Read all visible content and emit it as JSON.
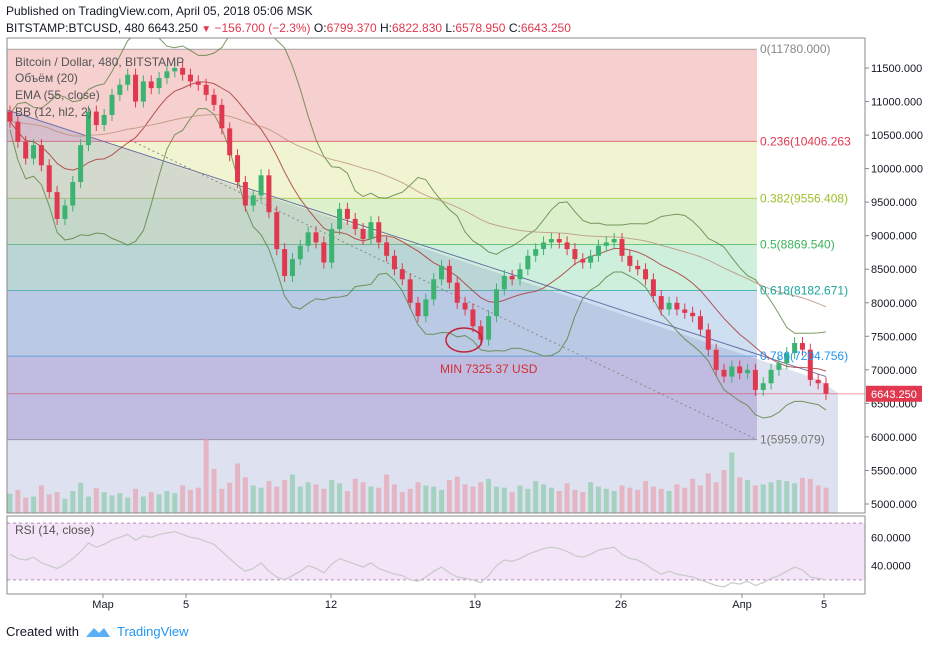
{
  "header": {
    "published": "Published on TradingView.com, April 05, 2018 05:06 MSK",
    "symbol": "BITSTAMP:BTCUSD, 480",
    "last": "6643.250",
    "change": "−156.700 (−2.3%)",
    "o_label": "O:",
    "o_value": "6799.370",
    "h_label": "H:",
    "h_value": "6822.830",
    "l_label": "L:",
    "l_value": "6578.950",
    "c_label": "C:",
    "c_value": "6643.250"
  },
  "legend": {
    "title": "Bitcoin / Dollar, 480, BITSTAMP",
    "volume": "Объём (20)",
    "ema": "EMA (55, close)",
    "bb": "BB (12, hl2, 2)"
  },
  "annotation": "MIN 7325.37 USD",
  "rsi_label": "RSI (14, close)",
  "footer": {
    "created": "Created with",
    "brand": "TradingView"
  },
  "colors": {
    "up": "#3cb371",
    "down": "#e0394f",
    "accent": "#2196f3",
    "fib_line": "#e0394f"
  },
  "chart_data": [
    {
      "type": "candlestick",
      "title": "Bitcoin / Dollar, 480, BITSTAMP",
      "x_ticks": [
        "Мар",
        "5",
        "12",
        "19",
        "26",
        "Апр",
        "5"
      ],
      "y_ticks": [
        "11500.000",
        "11000.000",
        "10500.000",
        "10000.000",
        "9500.000",
        "9000.000",
        "8500.000",
        "8000.000",
        "7500.000",
        "7000.000",
        "6500.000",
        "6000.000",
        "5500.000",
        "5000.000"
      ],
      "ylim": [
        4900,
        11900
      ],
      "last_price_label": "6643.250",
      "fibonacci": [
        {
          "level": "0",
          "price": 11780.0,
          "label": "0(11780.000)"
        },
        {
          "level": "0.236",
          "price": 10406.263,
          "label": "0.236(10406.263"
        },
        {
          "level": "0.382",
          "price": 9556.408,
          "label": "0.382(9556.408)"
        },
        {
          "level": "0.5",
          "price": 8869.54,
          "label": "0.5(8869.540)"
        },
        {
          "level": "0.618",
          "price": 8182.671,
          "label": "0.618(8182.671)"
        },
        {
          "level": "0.786",
          "price": 7204.756,
          "label": "0.786(7204.756)"
        },
        {
          "level": "1",
          "price": 5959.079,
          "label": "1(5959.079)"
        }
      ],
      "close": [
        10700,
        10400,
        10150,
        10350,
        10050,
        9650,
        9250,
        9450,
        9800,
        10350,
        10850,
        10650,
        10800,
        11100,
        11250,
        11400,
        11000,
        11300,
        11200,
        11350,
        11450,
        11500,
        11400,
        11300,
        11250,
        11100,
        10950,
        10600,
        10200,
        9800,
        9450,
        9600,
        9900,
        9350,
        8800,
        8400,
        8650,
        8850,
        9050,
        8900,
        8600,
        9100,
        9400,
        9250,
        9100,
        8950,
        9200,
        8900,
        8700,
        8500,
        8350,
        8000,
        7800,
        8050,
        8350,
        8550,
        8300,
        8000,
        7900,
        7650,
        7450,
        7800,
        8200,
        8400,
        8350,
        8500,
        8700,
        8800,
        8900,
        8950,
        8900,
        8800,
        8650,
        8600,
        8700,
        8850,
        8900,
        8950,
        8700,
        8550,
        8500,
        8350,
        8100,
        7900,
        8000,
        7900,
        7850,
        7800,
        7600,
        7300,
        7000,
        6900,
        7050,
        6950,
        7000,
        6700,
        6800,
        7000,
        7100,
        7250,
        7400,
        7300,
        6850,
        6800,
        6643
      ]
    },
    {
      "type": "bar",
      "title": "Объём (20)",
      "note": "volume histogram, unitless relative heights",
      "values": [
        35,
        42,
        28,
        30,
        50,
        34,
        38,
        26,
        40,
        55,
        30,
        45,
        38,
        32,
        36,
        28,
        44,
        30,
        38,
        34,
        40,
        36,
        50,
        42,
        46,
        135,
        80,
        44,
        55,
        90,
        65,
        50,
        46,
        58,
        48,
        60,
        70,
        48,
        56,
        52,
        44,
        60,
        54,
        40,
        62,
        56,
        48,
        46,
        70,
        52,
        38,
        44,
        56,
        50,
        48,
        42,
        60,
        66,
        52,
        48,
        56,
        62,
        48,
        46,
        38,
        50,
        44,
        58,
        52,
        46,
        40,
        54,
        42,
        38,
        56,
        48,
        44,
        40,
        50,
        46,
        42,
        58,
        48,
        44,
        40,
        52,
        46,
        62,
        50,
        72,
        56,
        78,
        110,
        65,
        60,
        50,
        52,
        56,
        60,
        58,
        54,
        64,
        62,
        50,
        46
      ]
    },
    {
      "type": "line",
      "title": "RSI (14, close)",
      "y_ticks": [
        "60.0000",
        "40.0000"
      ],
      "ylim": [
        20,
        75
      ],
      "values": [
        48,
        45,
        44,
        46,
        42,
        40,
        38,
        41,
        45,
        50,
        56,
        53,
        55,
        58,
        60,
        62,
        58,
        61,
        60,
        62,
        63,
        64,
        62,
        60,
        59,
        57,
        55,
        50,
        45,
        40,
        36,
        38,
        42,
        36,
        32,
        30,
        33,
        36,
        40,
        38,
        35,
        41,
        45,
        43,
        41,
        39,
        42,
        38,
        36,
        34,
        33,
        30,
        29,
        32,
        36,
        39,
        35,
        32,
        31,
        30,
        28,
        33,
        40,
        44,
        43,
        45,
        48,
        50,
        52,
        53,
        52,
        50,
        47,
        46,
        48,
        51,
        52,
        53,
        48,
        45,
        44,
        41,
        37,
        34,
        36,
        34,
        33,
        32,
        30,
        28,
        26,
        25,
        28,
        27,
        29,
        26,
        28,
        31,
        33,
        36,
        39,
        37,
        32,
        31,
        30
      ]
    }
  ]
}
